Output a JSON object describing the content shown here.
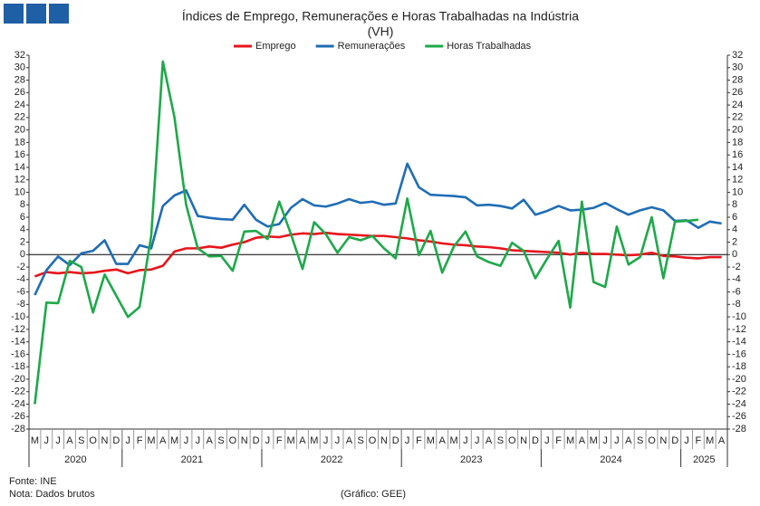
{
  "chart_data": {
    "type": "line",
    "title": "Índices de Emprego, Remunerações e Horas Trabalhadas na Indústria",
    "subtitle": "(VH)",
    "categories": [
      "M",
      "J",
      "J",
      "A",
      "S",
      "O",
      "N",
      "D",
      "J",
      "F",
      "M",
      "A",
      "M",
      "J",
      "J",
      "A",
      "S",
      "O",
      "N",
      "D",
      "J",
      "F",
      "M",
      "A",
      "M",
      "J",
      "J",
      "A",
      "S",
      "O",
      "N",
      "D",
      "J",
      "F",
      "M",
      "A",
      "M",
      "J",
      "J",
      "A",
      "S",
      "O",
      "N",
      "D",
      "J",
      "F",
      "M",
      "A",
      "M",
      "J",
      "J",
      "A",
      "S",
      "O",
      "N",
      "D",
      "J",
      "F",
      "M",
      "A"
    ],
    "years": [
      "2020",
      "2021",
      "2022",
      "2023",
      "2024",
      "2025"
    ],
    "series": [
      {
        "name": "Emprego",
        "color": "#e8141c",
        "values": [
          -3.5,
          -2.8,
          -3.0,
          -2.8,
          -3.0,
          -2.9,
          -2.6,
          -2.4,
          -3.0,
          -2.5,
          -2.4,
          -1.8,
          0.5,
          1.0,
          1.0,
          1.3,
          1.1,
          1.6,
          2.0,
          2.7,
          2.9,
          2.8,
          3.2,
          3.4,
          3.3,
          3.5,
          3.3,
          3.2,
          3.1,
          3.0,
          3.0,
          2.8,
          2.6,
          2.3,
          2.1,
          1.8,
          1.6,
          1.5,
          1.3,
          1.2,
          1.0,
          0.7,
          0.6,
          0.5,
          0.4,
          0.3,
          0.0,
          0.3,
          0.1,
          0.1,
          0.0,
          -0.1,
          0.0,
          0.3,
          -0.2,
          -0.3,
          -0.5,
          -0.6,
          -0.4,
          -0.4
        ]
      },
      {
        "name": "Remunerações",
        "color": "#1f6db5",
        "values": [
          -6.5,
          -2.5,
          -0.3,
          -1.7,
          0.2,
          0.6,
          2.3,
          -1.5,
          -1.5,
          1.5,
          1.0,
          7.8,
          9.5,
          10.3,
          6.2,
          5.9,
          5.7,
          5.6,
          8.0,
          5.6,
          4.5,
          4.9,
          7.5,
          8.9,
          7.9,
          7.7,
          8.2,
          8.9,
          8.3,
          8.5,
          8.0,
          8.2,
          14.6,
          10.8,
          9.6,
          9.5,
          9.4,
          9.2,
          7.9,
          8.0,
          7.8,
          7.4,
          8.8,
          6.4,
          7.0,
          7.8,
          7.1,
          7.2,
          7.5,
          8.3,
          7.3,
          6.4,
          7.1,
          7.6,
          7.1,
          5.4,
          5.5,
          4.3,
          5.3,
          5.0
        ]
      },
      {
        "name": "Horas Trabalhadas",
        "color": "#1fa84a",
        "values": [
          -24.0,
          -7.7,
          -7.8,
          -1.0,
          -2.0,
          -9.3,
          -3.2,
          -6.6,
          -10.0,
          -8.4,
          3.0,
          31.0,
          22.0,
          8.0,
          1.0,
          -0.3,
          -0.2,
          -2.6,
          3.7,
          3.8,
          2.5,
          8.5,
          3.3,
          -2.3,
          5.2,
          3.3,
          0.3,
          2.8,
          2.3,
          3.0,
          1.0,
          -0.6,
          9.0,
          -0.1,
          3.8,
          -2.9,
          1.3,
          3.7,
          -0.3,
          -1.2,
          -1.8,
          1.9,
          0.6,
          -3.8,
          -0.7,
          2.2,
          -8.5,
          8.5,
          -4.4,
          -5.2,
          4.5,
          -1.6,
          -0.4,
          6.0,
          -3.8,
          5.3,
          5.4,
          5.6,
          null,
          null
        ]
      }
    ],
    "ylim": [
      -28,
      32
    ],
    "yticks": [
      -28,
      -26,
      -24,
      -22,
      -20,
      -18,
      -16,
      -14,
      -12,
      -10,
      -8,
      -6,
      -4,
      -2,
      0,
      2,
      4,
      6,
      8,
      10,
      12,
      14,
      16,
      18,
      20,
      22,
      24,
      26,
      28,
      30,
      32
    ],
    "y2lim": [
      -28,
      32
    ],
    "y2ticks": [
      -28,
      -26,
      -24,
      -22,
      -20,
      -18,
      -16,
      -14,
      -12,
      -10,
      -8,
      -6,
      -4,
      -2,
      0,
      2,
      4,
      6,
      8,
      10,
      12,
      14,
      16,
      18,
      20,
      22,
      24,
      26,
      28,
      30,
      32
    ],
    "source": "Fonte: INE",
    "note": "Nota: Dados brutos",
    "credit": "(Gráfico: GEE)"
  }
}
